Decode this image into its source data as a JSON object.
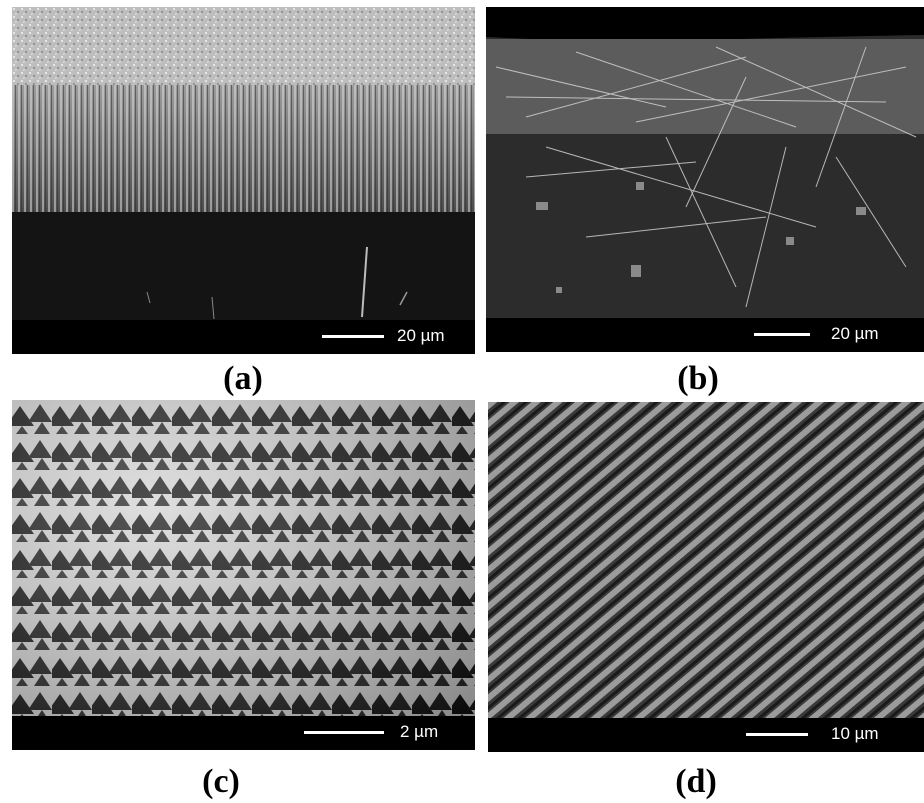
{
  "figure": {
    "panels": [
      {
        "caption": "(a)",
        "scale_bar": "20 µm",
        "content": "vertically aligned nanowire array, cross-section"
      },
      {
        "caption": "(b)",
        "scale_bar": "20 µm",
        "content": "randomly oriented nanowires on substrate, cross-section"
      },
      {
        "caption": "(c)",
        "scale_bar": "2 µm",
        "content": "triangular etch pits on surface"
      },
      {
        "caption": "(d)",
        "scale_bar": "10 µm",
        "content": "inclined parallel nanowires, top view"
      }
    ],
    "colors": {
      "scale_strip": "#000000",
      "scale_text": "#ffffff",
      "caption": "#000000"
    }
  }
}
